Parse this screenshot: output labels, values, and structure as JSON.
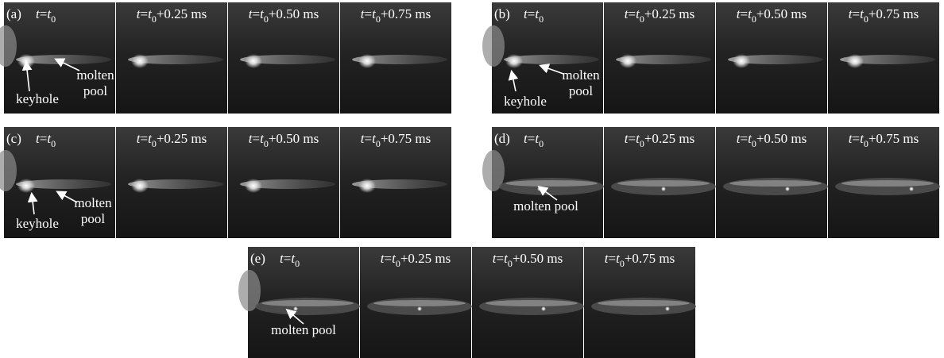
{
  "panels": [
    {
      "label": "(a)",
      "frames": [
        "t=t0",
        "t=t0+0.25 ms",
        "t=t0+0.50 ms",
        "t=t0+0.75 ms"
      ],
      "annotations": [
        {
          "lines": [
            "keyhole"
          ]
        },
        {
          "lines": [
            "molten",
            "pool"
          ]
        }
      ]
    },
    {
      "label": "(b)",
      "frames": [
        "t=t0",
        "t=t0+0.25 ms",
        "t=t0+0.50 ms",
        "t=t0+0.75 ms"
      ],
      "annotations": [
        {
          "lines": [
            "keyhole"
          ]
        },
        {
          "lines": [
            "molten",
            "pool"
          ]
        }
      ]
    },
    {
      "label": "(c)",
      "frames": [
        "t=t0",
        "t=t0+0.25 ms",
        "t=t0+0.50 ms",
        "t=t0+0.75 ms"
      ],
      "annotations": [
        {
          "lines": [
            "keyhole"
          ]
        },
        {
          "lines": [
            "molten",
            "pool"
          ]
        }
      ]
    },
    {
      "label": "(d)",
      "frames": [
        "t=t0",
        "t=t0+0.25 ms",
        "t=t0+0.50 ms",
        "t=t0+0.75 ms"
      ],
      "annotations": [
        {
          "lines": [
            "molten pool"
          ]
        }
      ]
    },
    {
      "label": "(e)",
      "frames": [
        "t=t0",
        "t=t0+0.25 ms",
        "t=t0+0.50 ms",
        "t=t0+0.75 ms"
      ],
      "annotations": [
        {
          "lines": [
            "molten pool"
          ]
        }
      ]
    }
  ]
}
